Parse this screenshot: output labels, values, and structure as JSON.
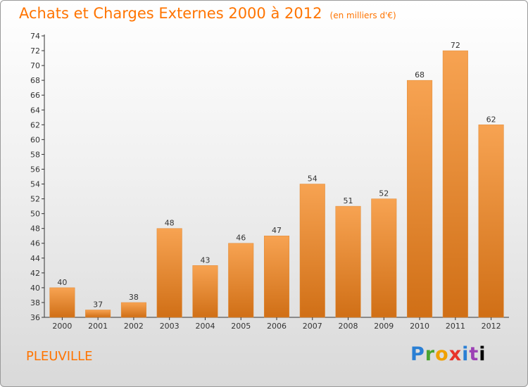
{
  "header": {
    "title": "Achats et Charges Externes 2000 à 2012",
    "unit": "(en milliers d'€)"
  },
  "footer": {
    "commune": "PLEUVILLE",
    "logo_letters": [
      "P",
      "r",
      "o",
      "x",
      "i",
      "t",
      "i"
    ]
  },
  "colors": {
    "accent": "#ff7400",
    "bar_light": "#f7a352",
    "bar_dark": "#d06f16"
  },
  "chart_data": {
    "type": "bar",
    "categories": [
      "2000",
      "2001",
      "2002",
      "2003",
      "2004",
      "2005",
      "2006",
      "2007",
      "2008",
      "2009",
      "2010",
      "2011",
      "2012"
    ],
    "values": [
      40,
      37,
      38,
      48,
      43,
      46,
      47,
      54,
      51,
      52,
      68,
      72,
      62
    ],
    "ylim": [
      36,
      74
    ],
    "yticks": [
      36,
      38,
      40,
      42,
      44,
      46,
      48,
      50,
      52,
      54,
      56,
      58,
      60,
      62,
      64,
      66,
      68,
      70,
      72,
      74
    ],
    "grid": false,
    "xlabel": "",
    "ylabel": ""
  }
}
